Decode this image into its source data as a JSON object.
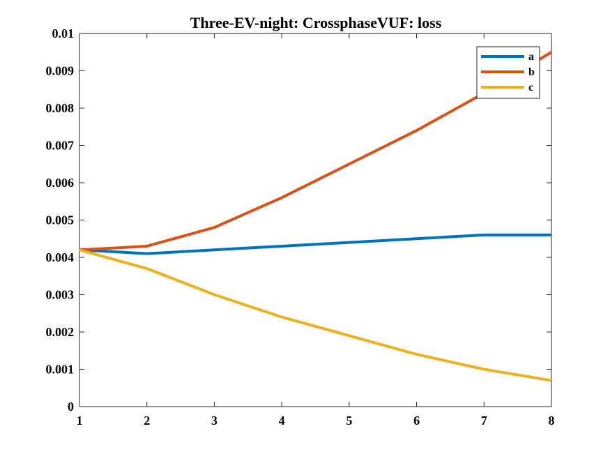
{
  "chart_data": {
    "type": "line",
    "title": "Three-EV-night: CrossphaseVUF: loss",
    "xlabel": "",
    "ylabel": "",
    "x": [
      1,
      2,
      3,
      4,
      5,
      6,
      7,
      8
    ],
    "xlim": [
      1,
      8
    ],
    "ylim": [
      0,
      0.01
    ],
    "xticks": [
      "1",
      "2",
      "3",
      "4",
      "5",
      "6",
      "7",
      "8"
    ],
    "yticks": [
      "0",
      "0.001",
      "0.002",
      "0.003",
      "0.004",
      "0.005",
      "0.006",
      "0.007",
      "0.008",
      "0.009",
      "0.01"
    ],
    "grid": false,
    "legend_position": "top-right",
    "series": [
      {
        "name": "a",
        "color": "#0072BD",
        "values": [
          0.0042,
          0.0041,
          0.0042,
          0.0043,
          0.0044,
          0.0045,
          0.0046,
          0.0046
        ]
      },
      {
        "name": "b",
        "color": "#D95319",
        "values": [
          0.0042,
          0.0043,
          0.0048,
          0.0056,
          0.0065,
          0.0074,
          0.0084,
          0.0095
        ]
      },
      {
        "name": "c",
        "color": "#EDB120",
        "values": [
          0.0042,
          0.0037,
          0.003,
          0.0024,
          0.0019,
          0.0014,
          0.001,
          0.0007
        ]
      }
    ]
  }
}
